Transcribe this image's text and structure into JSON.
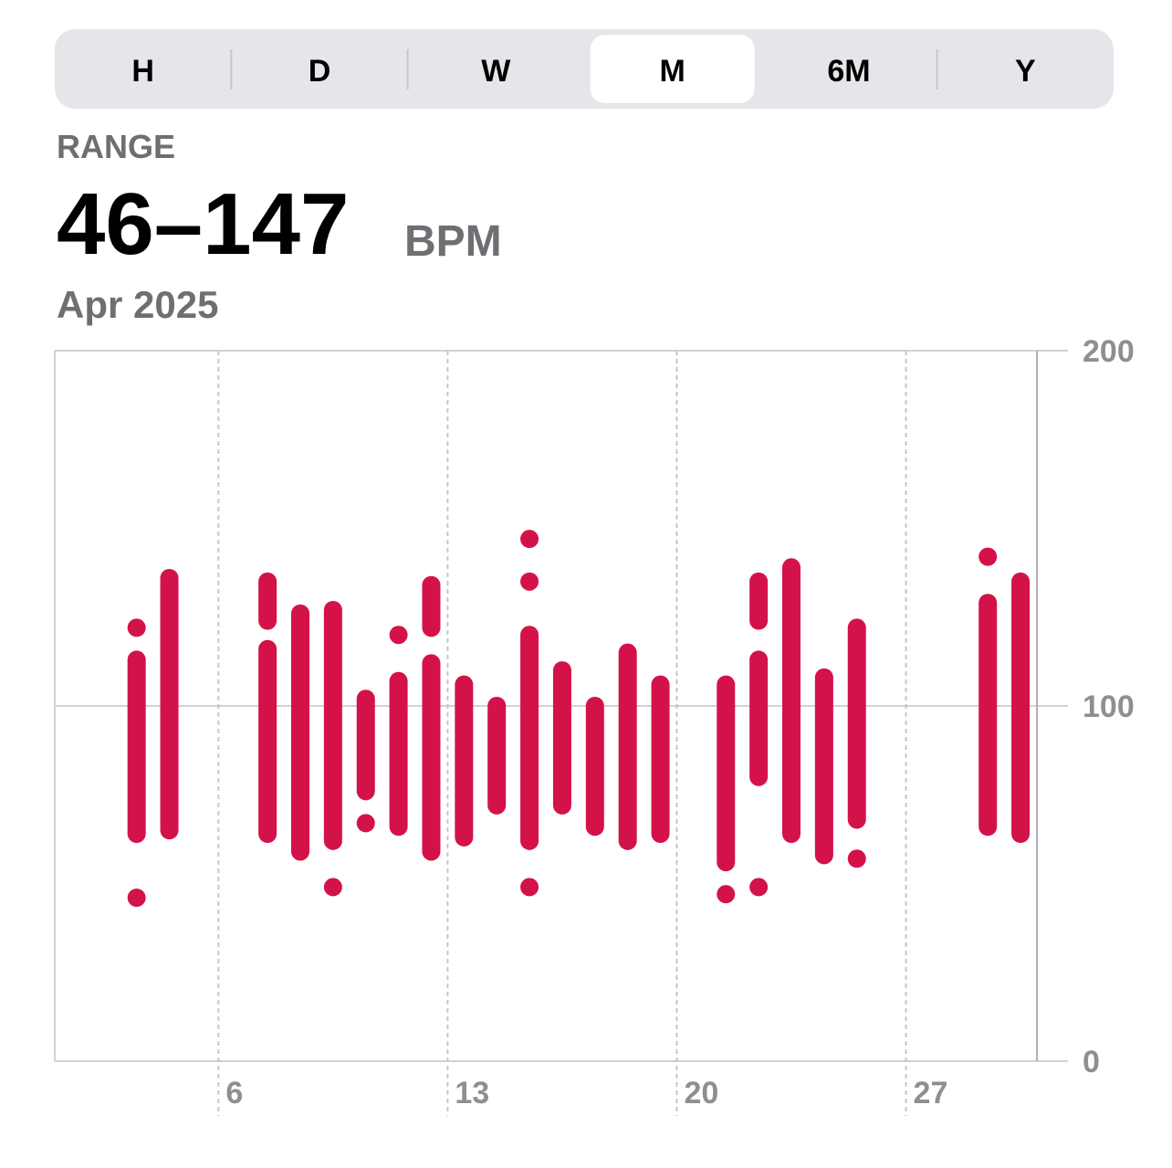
{
  "segmented_control": {
    "options": [
      "H",
      "D",
      "W",
      "M",
      "6M",
      "Y"
    ],
    "selected": 3
  },
  "header": {
    "label": "RANGE",
    "value": "46–147",
    "unit": "BPM",
    "period": "Apr 2025"
  },
  "chart_data": {
    "type": "range",
    "color": "#d4124a",
    "x": [
      3,
      3,
      3,
      4,
      7,
      7,
      8,
      9,
      9,
      10,
      10,
      11,
      11,
      12,
      12,
      13,
      14,
      15,
      15,
      15,
      15,
      16,
      17,
      18,
      19,
      21,
      21,
      22,
      22,
      22,
      23,
      24,
      25,
      25,
      29,
      29,
      30
    ],
    "low": [
      122,
      64,
      46,
      65,
      124,
      64,
      59,
      62,
      49,
      76,
      67,
      120,
      66,
      122,
      59,
      63,
      72,
      147,
      135,
      62,
      49,
      72,
      66,
      62,
      64,
      56,
      47,
      124,
      80,
      49,
      64,
      58,
      68,
      57,
      142,
      66,
      64
    ],
    "high": [
      122,
      113,
      46,
      136,
      135,
      116,
      126,
      127,
      49,
      102,
      67,
      120,
      107,
      134,
      112,
      106,
      100,
      147,
      135,
      120,
      49,
      110,
      100,
      115,
      106,
      106,
      47,
      135,
      113,
      49,
      139,
      108,
      122,
      57,
      142,
      129,
      135
    ],
    "xlim": [
      1,
      31
    ],
    "xticks": [
      6,
      13,
      20,
      27
    ],
    "ylim": [
      0,
      200
    ],
    "yticks": [
      0,
      100,
      200
    ],
    "grid": true
  }
}
